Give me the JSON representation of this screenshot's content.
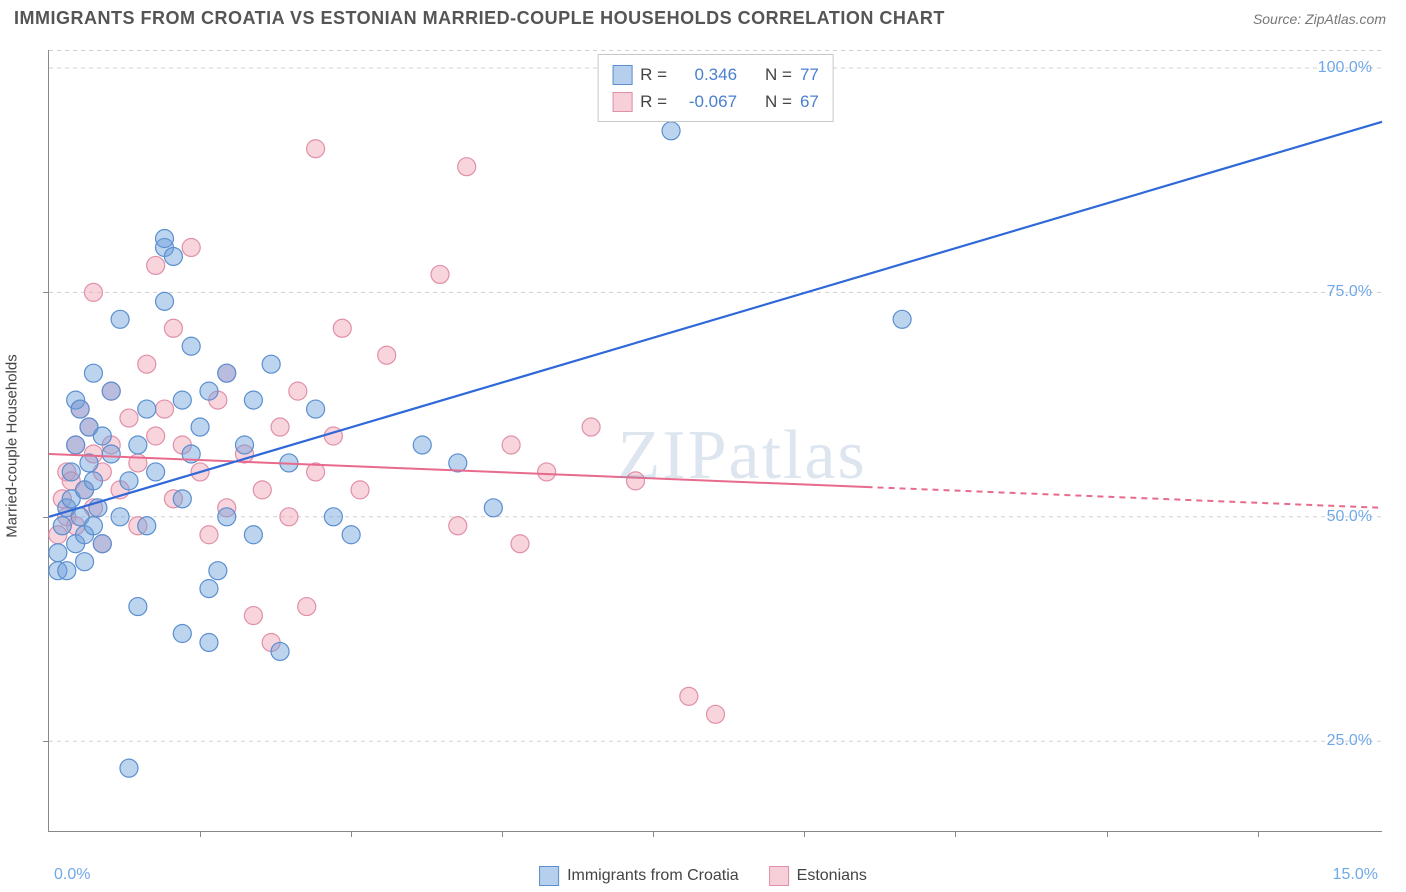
{
  "header": {
    "title": "IMMIGRANTS FROM CROATIA VS ESTONIAN MARRIED-COUPLE HOUSEHOLDS CORRELATION CHART",
    "source_prefix": "Source: ",
    "source": "ZipAtlas.com"
  },
  "chart": {
    "type": "scatter",
    "xlim": [
      0,
      15
    ],
    "ylim": [
      15,
      102
    ],
    "xtick_labels": [
      "0.0%",
      "15.0%"
    ],
    "ytick_values": [
      25,
      50,
      75,
      100
    ],
    "ytick_labels": [
      "25.0%",
      "50.0%",
      "75.0%",
      "100.0%"
    ],
    "bottom_tick_positions": [
      1.7,
      3.4,
      5.1,
      6.8,
      8.5,
      10.2,
      11.9,
      13.6
    ],
    "left_tick_positions": [
      25,
      50,
      75
    ],
    "ylabel": "Married-couple Households",
    "background_color": "#ffffff",
    "grid_color": "#d0d0d0",
    "axis_color": "#888888",
    "tick_label_color": "#6fa8e8",
    "label_fontsize": 15,
    "tick_fontsize": 16,
    "watermark": "ZIPatlas",
    "series": {
      "blue": {
        "name": "Immigrants from Croatia",
        "R": "0.346",
        "N": "77",
        "fill": "rgba(108,160,220,0.45)",
        "stroke": "#5b8fd0",
        "marker_radius": 9,
        "trend": {
          "x1": 0,
          "y1": 50,
          "x2": 15,
          "y2": 94,
          "color": "#2f68d8",
          "width": 2.2,
          "solid_until_x": 15
        },
        "points": [
          [
            0.1,
            44
          ],
          [
            0.1,
            46
          ],
          [
            0.15,
            49
          ],
          [
            0.2,
            51
          ],
          [
            0.2,
            44
          ],
          [
            0.25,
            52
          ],
          [
            0.25,
            55
          ],
          [
            0.3,
            47
          ],
          [
            0.3,
            58
          ],
          [
            0.3,
            63
          ],
          [
            0.35,
            50
          ],
          [
            0.35,
            62
          ],
          [
            0.4,
            48
          ],
          [
            0.4,
            45
          ],
          [
            0.4,
            53
          ],
          [
            0.45,
            56
          ],
          [
            0.45,
            60
          ],
          [
            0.5,
            49
          ],
          [
            0.5,
            54
          ],
          [
            0.5,
            66
          ],
          [
            0.55,
            51
          ],
          [
            0.6,
            59
          ],
          [
            0.6,
            47
          ],
          [
            0.7,
            57
          ],
          [
            0.7,
            64
          ],
          [
            0.8,
            50
          ],
          [
            0.8,
            72
          ],
          [
            0.9,
            54
          ],
          [
            0.9,
            22
          ],
          [
            1.0,
            58
          ],
          [
            1.0,
            40
          ],
          [
            1.1,
            62
          ],
          [
            1.1,
            49
          ],
          [
            1.2,
            55
          ],
          [
            1.3,
            80
          ],
          [
            1.3,
            81
          ],
          [
            1.3,
            74
          ],
          [
            1.4,
            79
          ],
          [
            1.5,
            63
          ],
          [
            1.5,
            52
          ],
          [
            1.5,
            37
          ],
          [
            1.6,
            69
          ],
          [
            1.6,
            57
          ],
          [
            1.7,
            60
          ],
          [
            1.8,
            42
          ],
          [
            1.8,
            36
          ],
          [
            1.8,
            64
          ],
          [
            1.9,
            44
          ],
          [
            2.0,
            66
          ],
          [
            2.0,
            50
          ],
          [
            2.2,
            58
          ],
          [
            2.3,
            48
          ],
          [
            2.3,
            63
          ],
          [
            2.5,
            67
          ],
          [
            2.6,
            35
          ],
          [
            2.7,
            56
          ],
          [
            3.0,
            62
          ],
          [
            3.2,
            50
          ],
          [
            3.4,
            48
          ],
          [
            4.2,
            58
          ],
          [
            4.6,
            56
          ],
          [
            5.0,
            51
          ],
          [
            7.0,
            93
          ],
          [
            9.6,
            72
          ]
        ]
      },
      "pink": {
        "name": "Estonians",
        "R": "-0.067",
        "N": "67",
        "fill": "rgba(240,160,180,0.45)",
        "stroke": "#e090a8",
        "marker_radius": 9,
        "trend": {
          "x1": 0,
          "y1": 57,
          "x2": 15,
          "y2": 51,
          "color": "#e86a8c",
          "width": 2,
          "solid_until_x": 9.2
        },
        "points": [
          [
            0.1,
            48
          ],
          [
            0.15,
            52
          ],
          [
            0.2,
            55
          ],
          [
            0.2,
            50
          ],
          [
            0.25,
            54
          ],
          [
            0.3,
            58
          ],
          [
            0.3,
            49
          ],
          [
            0.35,
            62
          ],
          [
            0.4,
            53
          ],
          [
            0.45,
            60
          ],
          [
            0.5,
            57
          ],
          [
            0.5,
            51
          ],
          [
            0.5,
            75
          ],
          [
            0.6,
            55
          ],
          [
            0.6,
            47
          ],
          [
            0.7,
            64
          ],
          [
            0.7,
            58
          ],
          [
            0.8,
            53
          ],
          [
            0.9,
            61
          ],
          [
            1.0,
            56
          ],
          [
            1.0,
            49
          ],
          [
            1.1,
            67
          ],
          [
            1.2,
            59
          ],
          [
            1.2,
            78
          ],
          [
            1.3,
            62
          ],
          [
            1.4,
            71
          ],
          [
            1.4,
            52
          ],
          [
            1.5,
            58
          ],
          [
            1.6,
            80
          ],
          [
            1.7,
            55
          ],
          [
            1.8,
            48
          ],
          [
            1.9,
            63
          ],
          [
            2.0,
            51
          ],
          [
            2.0,
            66
          ],
          [
            2.2,
            57
          ],
          [
            2.3,
            39
          ],
          [
            2.4,
            53
          ],
          [
            2.5,
            36
          ],
          [
            2.6,
            60
          ],
          [
            2.7,
            50
          ],
          [
            2.8,
            64
          ],
          [
            2.9,
            40
          ],
          [
            3.0,
            55
          ],
          [
            3.0,
            91
          ],
          [
            3.2,
            59
          ],
          [
            3.3,
            71
          ],
          [
            3.5,
            53
          ],
          [
            3.8,
            68
          ],
          [
            4.4,
            77
          ],
          [
            4.6,
            49
          ],
          [
            4.7,
            89
          ],
          [
            5.2,
            58
          ],
          [
            5.3,
            47
          ],
          [
            5.6,
            55
          ],
          [
            6.1,
            60
          ],
          [
            6.6,
            54
          ],
          [
            7.2,
            30
          ],
          [
            7.5,
            28
          ]
        ]
      }
    }
  },
  "legend_top": {
    "r_label": "R =",
    "n_label": "N ="
  },
  "legend_bottom": {
    "items": [
      {
        "swatch": "blue",
        "label": "Immigrants from Croatia"
      },
      {
        "swatch": "pink",
        "label": "Estonians"
      }
    ]
  }
}
